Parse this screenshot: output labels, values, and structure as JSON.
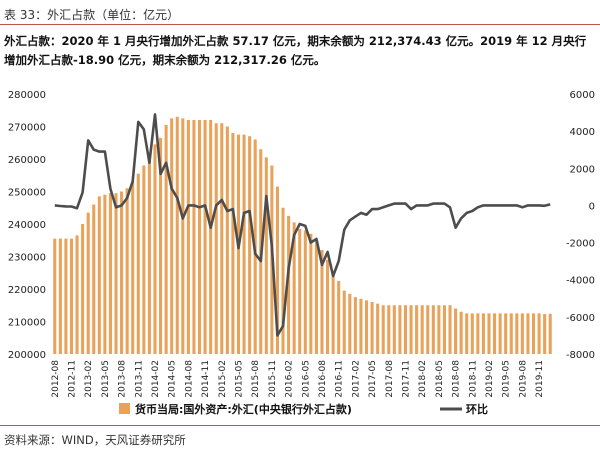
{
  "header": {
    "table_label": "表 33：外汇占款（单位：亿元）"
  },
  "description": "外汇占款：2020 年 1 月央行增加外汇占款 57.17 亿元，期末余额为 212,374.43 亿元。2019 年 12 月央行增加外汇占款-18.90 亿元，期末余额为 212,317.26 亿元。",
  "footer": {
    "source": "资料来源：WIND，天风证券研究所"
  },
  "colors": {
    "bar": "#e8a25a",
    "line": "#4d4d4d",
    "rule": "#c0504d"
  },
  "chart_data": {
    "type": "bar",
    "categories": [
      "2012-08",
      "2012-09",
      "2012-10",
      "2012-11",
      "2012-12",
      "2013-01",
      "2013-02",
      "2013-03",
      "2013-04",
      "2013-05",
      "2013-06",
      "2013-07",
      "2013-08",
      "2013-09",
      "2013-10",
      "2013-11",
      "2013-12",
      "2014-01",
      "2014-02",
      "2014-03",
      "2014-04",
      "2014-05",
      "2014-06",
      "2014-07",
      "2014-08",
      "2014-09",
      "2014-10",
      "2014-11",
      "2014-12",
      "2015-01",
      "2015-02",
      "2015-03",
      "2015-04",
      "2015-05",
      "2015-06",
      "2015-07",
      "2015-08",
      "2015-09",
      "2015-10",
      "2015-11",
      "2015-12",
      "2016-01",
      "2016-02",
      "2016-03",
      "2016-04",
      "2016-05",
      "2016-06",
      "2016-07",
      "2016-08",
      "2016-09",
      "2016-10",
      "2016-11",
      "2016-12",
      "2017-01",
      "2017-02",
      "2017-03",
      "2017-04",
      "2017-05",
      "2017-06",
      "2017-07",
      "2017-08",
      "2017-09",
      "2017-10",
      "2017-11",
      "2017-12",
      "2018-01",
      "2018-02",
      "2018-03",
      "2018-04",
      "2018-05",
      "2018-06",
      "2018-07",
      "2018-08",
      "2018-09",
      "2018-10",
      "2018-11",
      "2018-12",
      "2019-01",
      "2019-02",
      "2019-03",
      "2019-04",
      "2019-05",
      "2019-06",
      "2019-07",
      "2019-08",
      "2019-09",
      "2019-10",
      "2019-11",
      "2019-12",
      "2020-01"
    ],
    "tick_labels": [
      "2012-08",
      "2012-11",
      "2013-02",
      "2013-05",
      "2013-08",
      "2013-11",
      "2014-02",
      "2014-05",
      "2014-08",
      "2014-11",
      "2015-02",
      "2015-05",
      "2015-08",
      "2015-11",
      "2016-02",
      "2016-05",
      "2016-08",
      "2016-11",
      "2017-02",
      "2017-05",
      "2017-08",
      "2017-11",
      "2018-02",
      "2018-05",
      "2018-08",
      "2018-11",
      "2019-02",
      "2019-05",
      "2019-08",
      "2019-11"
    ],
    "y_left": {
      "min": 200000,
      "max": 280000,
      "step": 10000,
      "ticks": [
        "200000",
        "210000",
        "220000",
        "230000",
        "240000",
        "250000",
        "260000",
        "270000",
        "280000"
      ]
    },
    "y_right": {
      "min": -8000,
      "max": 6000,
      "step": 2000,
      "ticks": [
        "-8000",
        "-6000",
        "-4000",
        "-2000",
        "0",
        "2000",
        "4000",
        "6000"
      ]
    },
    "series": [
      {
        "name": "货币当局:国外资产:外汇(中央银行外汇占款)",
        "type": "bar",
        "axis": "left",
        "values": [
          235500,
          235500,
          235500,
          235500,
          236500,
          240000,
          243500,
          246000,
          248500,
          249000,
          249500,
          249500,
          250000,
          251000,
          253000,
          255500,
          258000,
          262000,
          264500,
          266500,
          270500,
          272500,
          273000,
          272500,
          272000,
          272000,
          272000,
          272000,
          272000,
          271000,
          271000,
          270000,
          268000,
          267500,
          267500,
          267000,
          266000,
          263000,
          260500,
          258000,
          251500,
          245000,
          242500,
          240500,
          238500,
          238000,
          237000,
          234500,
          232000,
          229000,
          225500,
          222500,
          219500,
          218500,
          217500,
          217000,
          216500,
          216000,
          215500,
          215000,
          215000,
          215000,
          215000,
          215000,
          215000,
          215000,
          215000,
          215000,
          215000,
          215000,
          215000,
          215000,
          214000,
          213000,
          212500,
          212500,
          212500,
          212500,
          212500,
          212500,
          212500,
          212500,
          212500,
          212500,
          212500,
          212500,
          212500,
          212500,
          212317,
          212374
        ]
      },
      {
        "name": "环比",
        "type": "line",
        "axis": "right",
        "values": [
          0,
          -30,
          -50,
          -60,
          -150,
          700,
          3500,
          3000,
          2900,
          2900,
          900,
          -100,
          0,
          400,
          1300,
          4500,
          4100,
          2300,
          4900,
          1700,
          2300,
          900,
          400,
          -700,
          0,
          0,
          -100,
          0,
          -1200,
          0,
          300,
          -300,
          -200,
          -2300,
          -400,
          -300,
          -2600,
          -3000,
          500,
          -2200,
          -7000,
          -6500,
          -3400,
          -1600,
          -1000,
          -1100,
          -2000,
          -1800,
          -3200,
          -2500,
          -3800,
          -3000,
          -1300,
          -800,
          -600,
          -400,
          -500,
          -200,
          -200,
          -100,
          0,
          100,
          100,
          100,
          -200,
          0,
          0,
          0,
          100,
          100,
          100,
          -100,
          -1200,
          -700,
          -400,
          -300,
          -100,
          0,
          0,
          0,
          0,
          0,
          0,
          0,
          -100,
          0,
          0,
          0,
          -19,
          57
        ]
      }
    ],
    "legend": [
      "货币当局:国外资产:外汇(中央银行外汇占款)",
      "环比"
    ],
    "legend_position": "bottom"
  }
}
